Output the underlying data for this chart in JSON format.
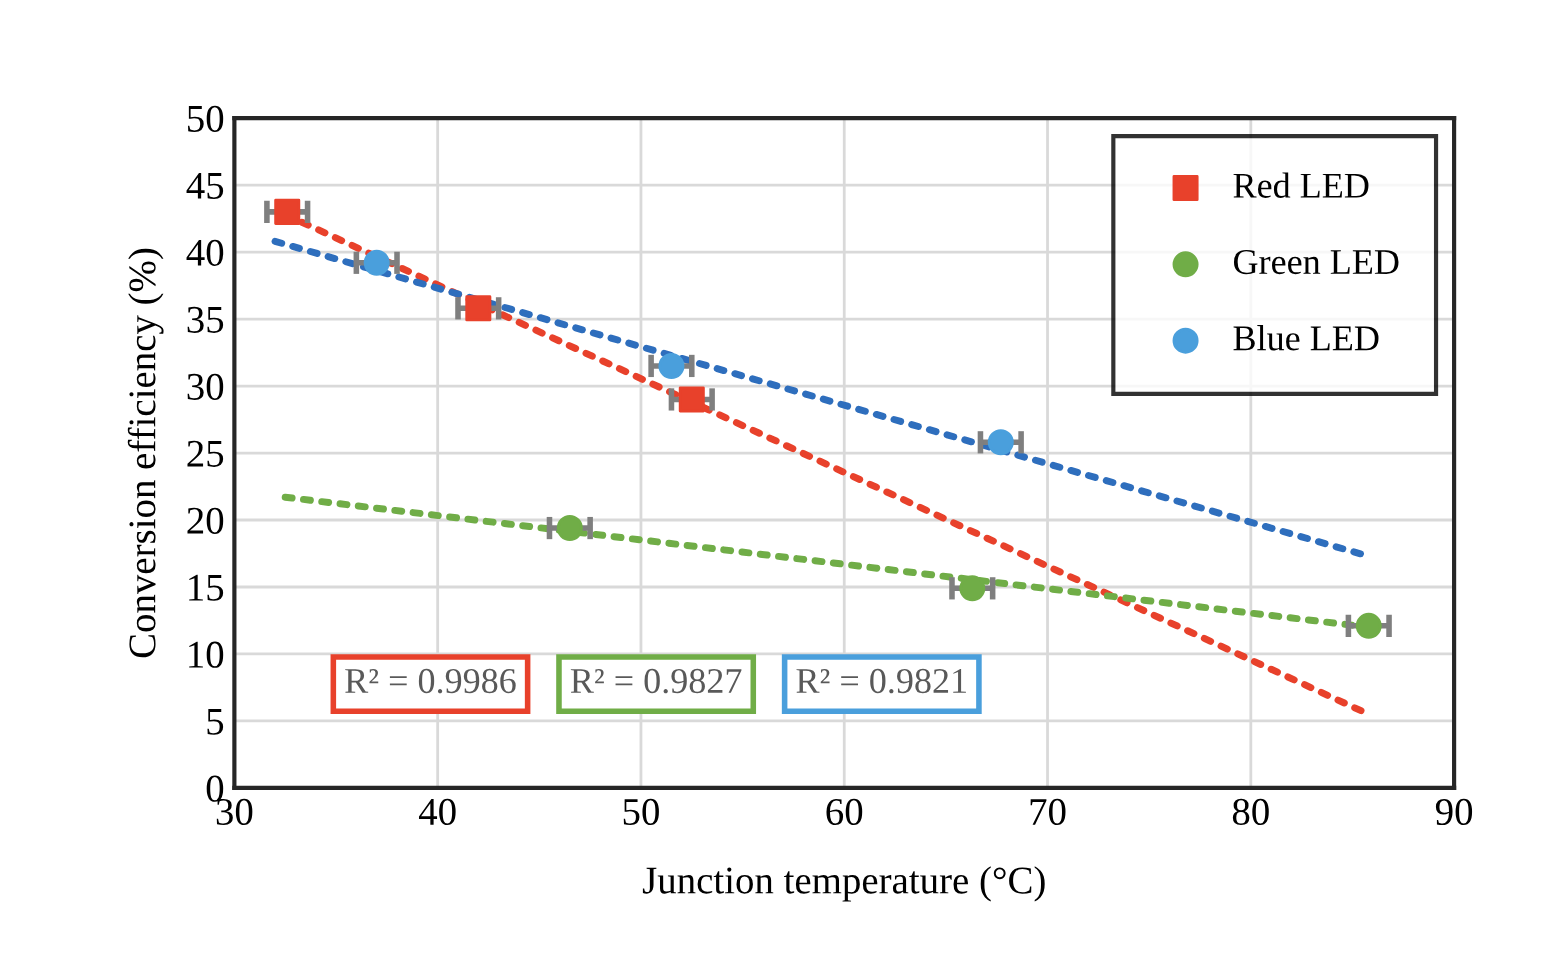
{
  "chart_data": {
    "type": "scatter",
    "xlabel": "Junction temperature (°C)",
    "ylabel": "Conversion efficiency (%)",
    "xlim": [
      30,
      90
    ],
    "xticks": [
      30,
      40,
      50,
      60,
      70,
      80,
      90
    ],
    "ylim": [
      0,
      50
    ],
    "yticks": [
      0,
      5,
      10,
      15,
      20,
      25,
      30,
      35,
      40,
      45,
      50
    ],
    "grid": true,
    "legend": "top right",
    "series": [
      {
        "name": "Red LED",
        "color": "#e8412b",
        "marker": "square",
        "x": [
          32.6,
          42.0,
          52.5
        ],
        "values": [
          43.0,
          35.8,
          29.0
        ],
        "xerrors": [
          1,
          1,
          1
        ]
      },
      {
        "name": "Green LED",
        "color": "#70ad47",
        "marker": "circle",
        "x": [
          46.5,
          66.3,
          85.8
        ],
        "values": [
          19.4,
          14.9,
          12.1
        ],
        "xerrors": [
          1,
          1,
          1
        ]
      },
      {
        "name": "Blue LED",
        "color": "#4a9fdc",
        "marker": "circle",
        "x": [
          37.0,
          51.5,
          67.7
        ],
        "values": [
          39.2,
          31.5,
          25.8
        ],
        "xerrors": [
          1,
          1,
          1
        ]
      },
      {
        "type": "line",
        "color": "#e8412b",
        "line_style": "dotted",
        "x": [
          32.5,
          85.8
        ],
        "values": [
          42.8,
          5.5
        ]
      },
      {
        "type": "line",
        "color": "#70ad47",
        "line_style": "dotted",
        "x": [
          32.5,
          85.8
        ],
        "values": [
          21.7,
          12.0
        ]
      },
      {
        "type": "line",
        "color": "#2e6ebd",
        "line_style": "dotted",
        "x": [
          32.0,
          85.8
        ],
        "values": [
          40.8,
          17.3
        ]
      }
    ],
    "annotations": [
      "R² = 0.9986",
      "R² = 0.9827",
      "R² = 0.9821"
    ]
  }
}
